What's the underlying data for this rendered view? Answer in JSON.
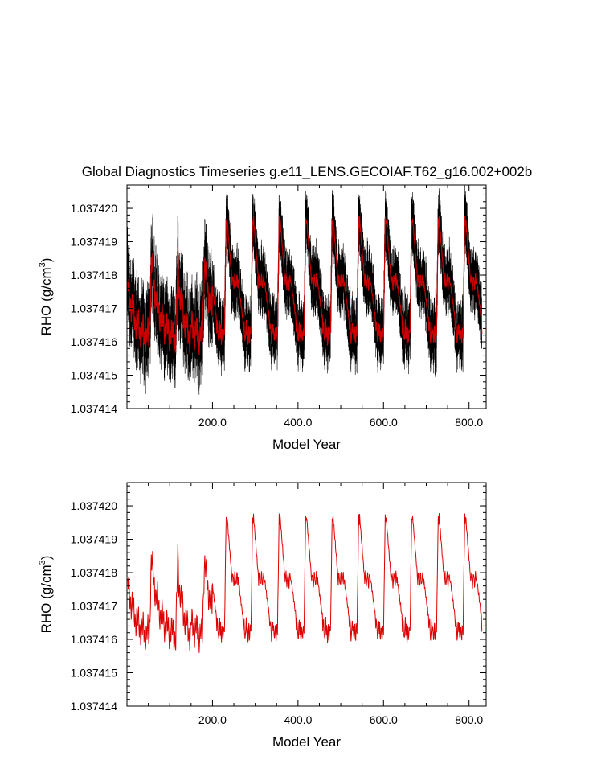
{
  "title": "Global Diagnostics Timeseries g.e11_LENS.GECOIAF.T62_g16.002+002b",
  "chart_data": [
    {
      "type": "line",
      "xlabel": "Model Year",
      "ylabel_main": "RHO (g/cm",
      "ylabel_sup": "3",
      "ylabel_close": ")",
      "xlim": [
        0,
        840
      ],
      "ylim": [
        1.037414,
        1.0374207
      ],
      "xticks": [
        200,
        400,
        600,
        800
      ],
      "xtick_labels": [
        "200.0",
        "400.0",
        "600.0",
        "800.0"
      ],
      "yticks": [
        1.037414,
        1.037415,
        1.037416,
        1.037417,
        1.037418,
        1.037419,
        1.03742
      ],
      "ytick_labels": [
        "1.037414",
        "1.037415",
        "1.037416",
        "1.037417",
        "1.037418",
        "1.037419",
        "1.037420"
      ],
      "series": [
        {
          "role": "monthly",
          "color": "#000000"
        },
        {
          "role": "annual",
          "color": "#cc0000"
        }
      ]
    },
    {
      "type": "line",
      "xlabel": "Model Year",
      "ylabel_main": "RHO (g/cm",
      "ylabel_sup": "3",
      "ylabel_close": ")",
      "xlim": [
        0,
        840
      ],
      "ylim": [
        1.037414,
        1.0374207
      ],
      "xticks": [
        200,
        400,
        600,
        800
      ],
      "xtick_labels": [
        "200.0",
        "400.0",
        "600.0",
        "800.0"
      ],
      "yticks": [
        1.037414,
        1.037415,
        1.037416,
        1.037417,
        1.037418,
        1.037419,
        1.03742
      ],
      "ytick_labels": [
        "1.037414",
        "1.037415",
        "1.037416",
        "1.037417",
        "1.037418",
        "1.037419",
        "1.037420"
      ],
      "series": [
        {
          "role": "annual",
          "color": "#dd0000"
        }
      ]
    }
  ]
}
